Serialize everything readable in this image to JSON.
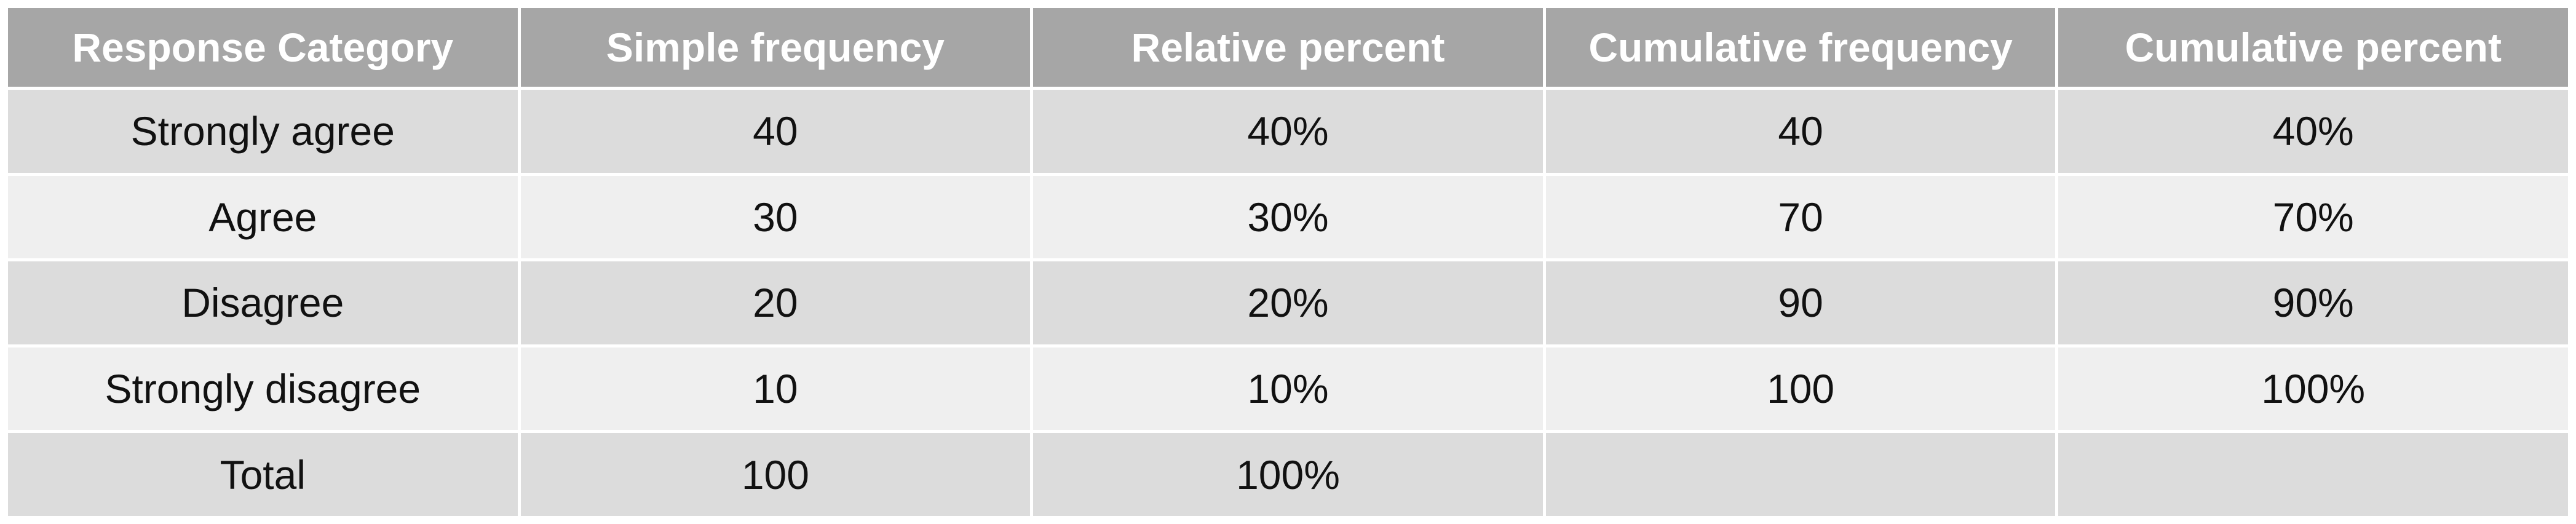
{
  "chart_data": {
    "type": "table",
    "columns": [
      "Response Category",
      "Simple frequency",
      "Relative percent",
      "Cumulative frequency",
      "Cumulative percent"
    ],
    "rows": [
      [
        "Strongly agree",
        "40",
        "40%",
        "40",
        "40%"
      ],
      [
        "Agree",
        "30",
        "30%",
        "70",
        "70%"
      ],
      [
        "Disagree",
        "20",
        "20%",
        "90",
        "90%"
      ],
      [
        "Strongly disagree",
        "10",
        "10%",
        "100",
        "100%"
      ],
      [
        "Total",
        "100",
        "100%",
        "",
        ""
      ]
    ]
  },
  "colors": {
    "header_bg": "#a6a6a6",
    "header_text": "#ffffff",
    "row_dark": "#dcdcdc",
    "row_light": "#efefef"
  }
}
